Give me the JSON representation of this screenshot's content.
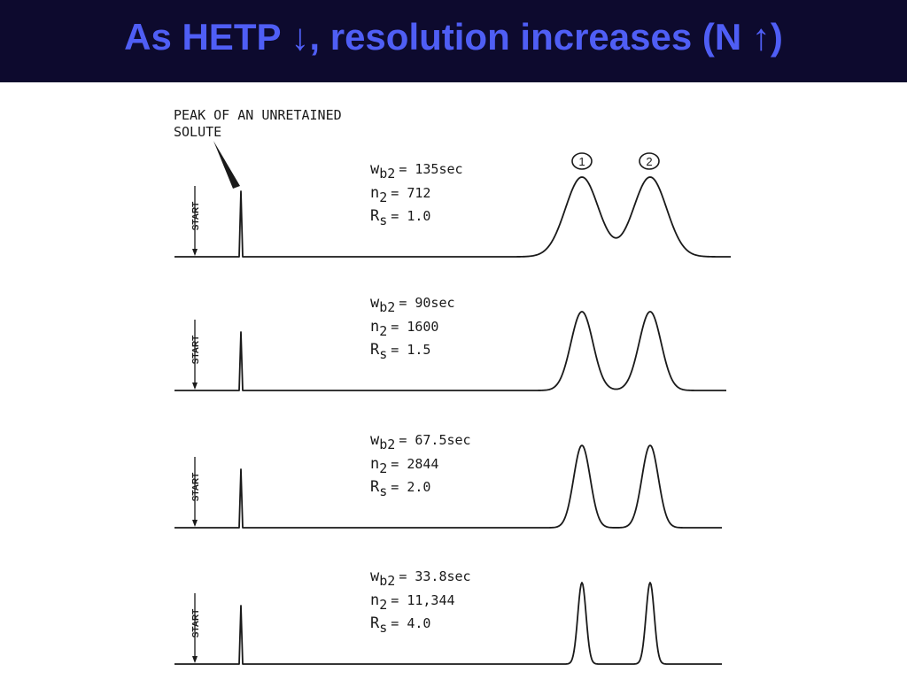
{
  "slide": {
    "title": "As HETP ↓, resolution increases (N ↑)",
    "colors": {
      "title_bar": "#0d0a2e",
      "title_text": "#4f5ef5",
      "ink": "#1a1a1a"
    }
  },
  "chart_data": {
    "type": "line",
    "title": "",
    "annotation": [
      "PEAK OF AN UNRETAINED",
      "SOLUTE"
    ],
    "start_label": "START",
    "peak_labels": [
      "1",
      "2"
    ],
    "xlabel": "",
    "ylabel": "",
    "grid": false,
    "panels": [
      {
        "wb2_label": "w",
        "wb2_sub": "b2",
        "wb2_value": "= 135sec",
        "n2_label": "n",
        "n2_sub": "2",
        "n2_value": "= 712",
        "rs_label": "R",
        "rs_sub": "s",
        "rs_value": "= 1.0",
        "wb2": 135,
        "n2": 712,
        "rs": 1.0
      },
      {
        "wb2_label": "w",
        "wb2_sub": "b2",
        "wb2_value": "= 90sec",
        "n2_label": "n",
        "n2_sub": "2",
        "n2_value": "= 1600",
        "rs_label": "R",
        "rs_sub": "s",
        "rs_value": "= 1.5",
        "wb2": 90,
        "n2": 1600,
        "rs": 1.5
      },
      {
        "wb2_label": "w",
        "wb2_sub": "b2",
        "wb2_value": "= 67.5sec",
        "n2_label": "n",
        "n2_sub": "2",
        "n2_value": "= 2844",
        "rs_label": "R",
        "rs_sub": "s",
        "rs_value": "= 2.0",
        "wb2": 67.5,
        "n2": 2844,
        "rs": 2.0
      },
      {
        "wb2_label": "w",
        "wb2_sub": "b2",
        "wb2_value": "= 33.8sec",
        "n2_label": "n",
        "n2_sub": "2",
        "n2_value": "= 11,344",
        "rs_label": "R",
        "rs_sub": "s",
        "rs_value": "= 4.0",
        "wb2": 33.8,
        "n2": 11344,
        "rs": 4.0
      }
    ]
  }
}
